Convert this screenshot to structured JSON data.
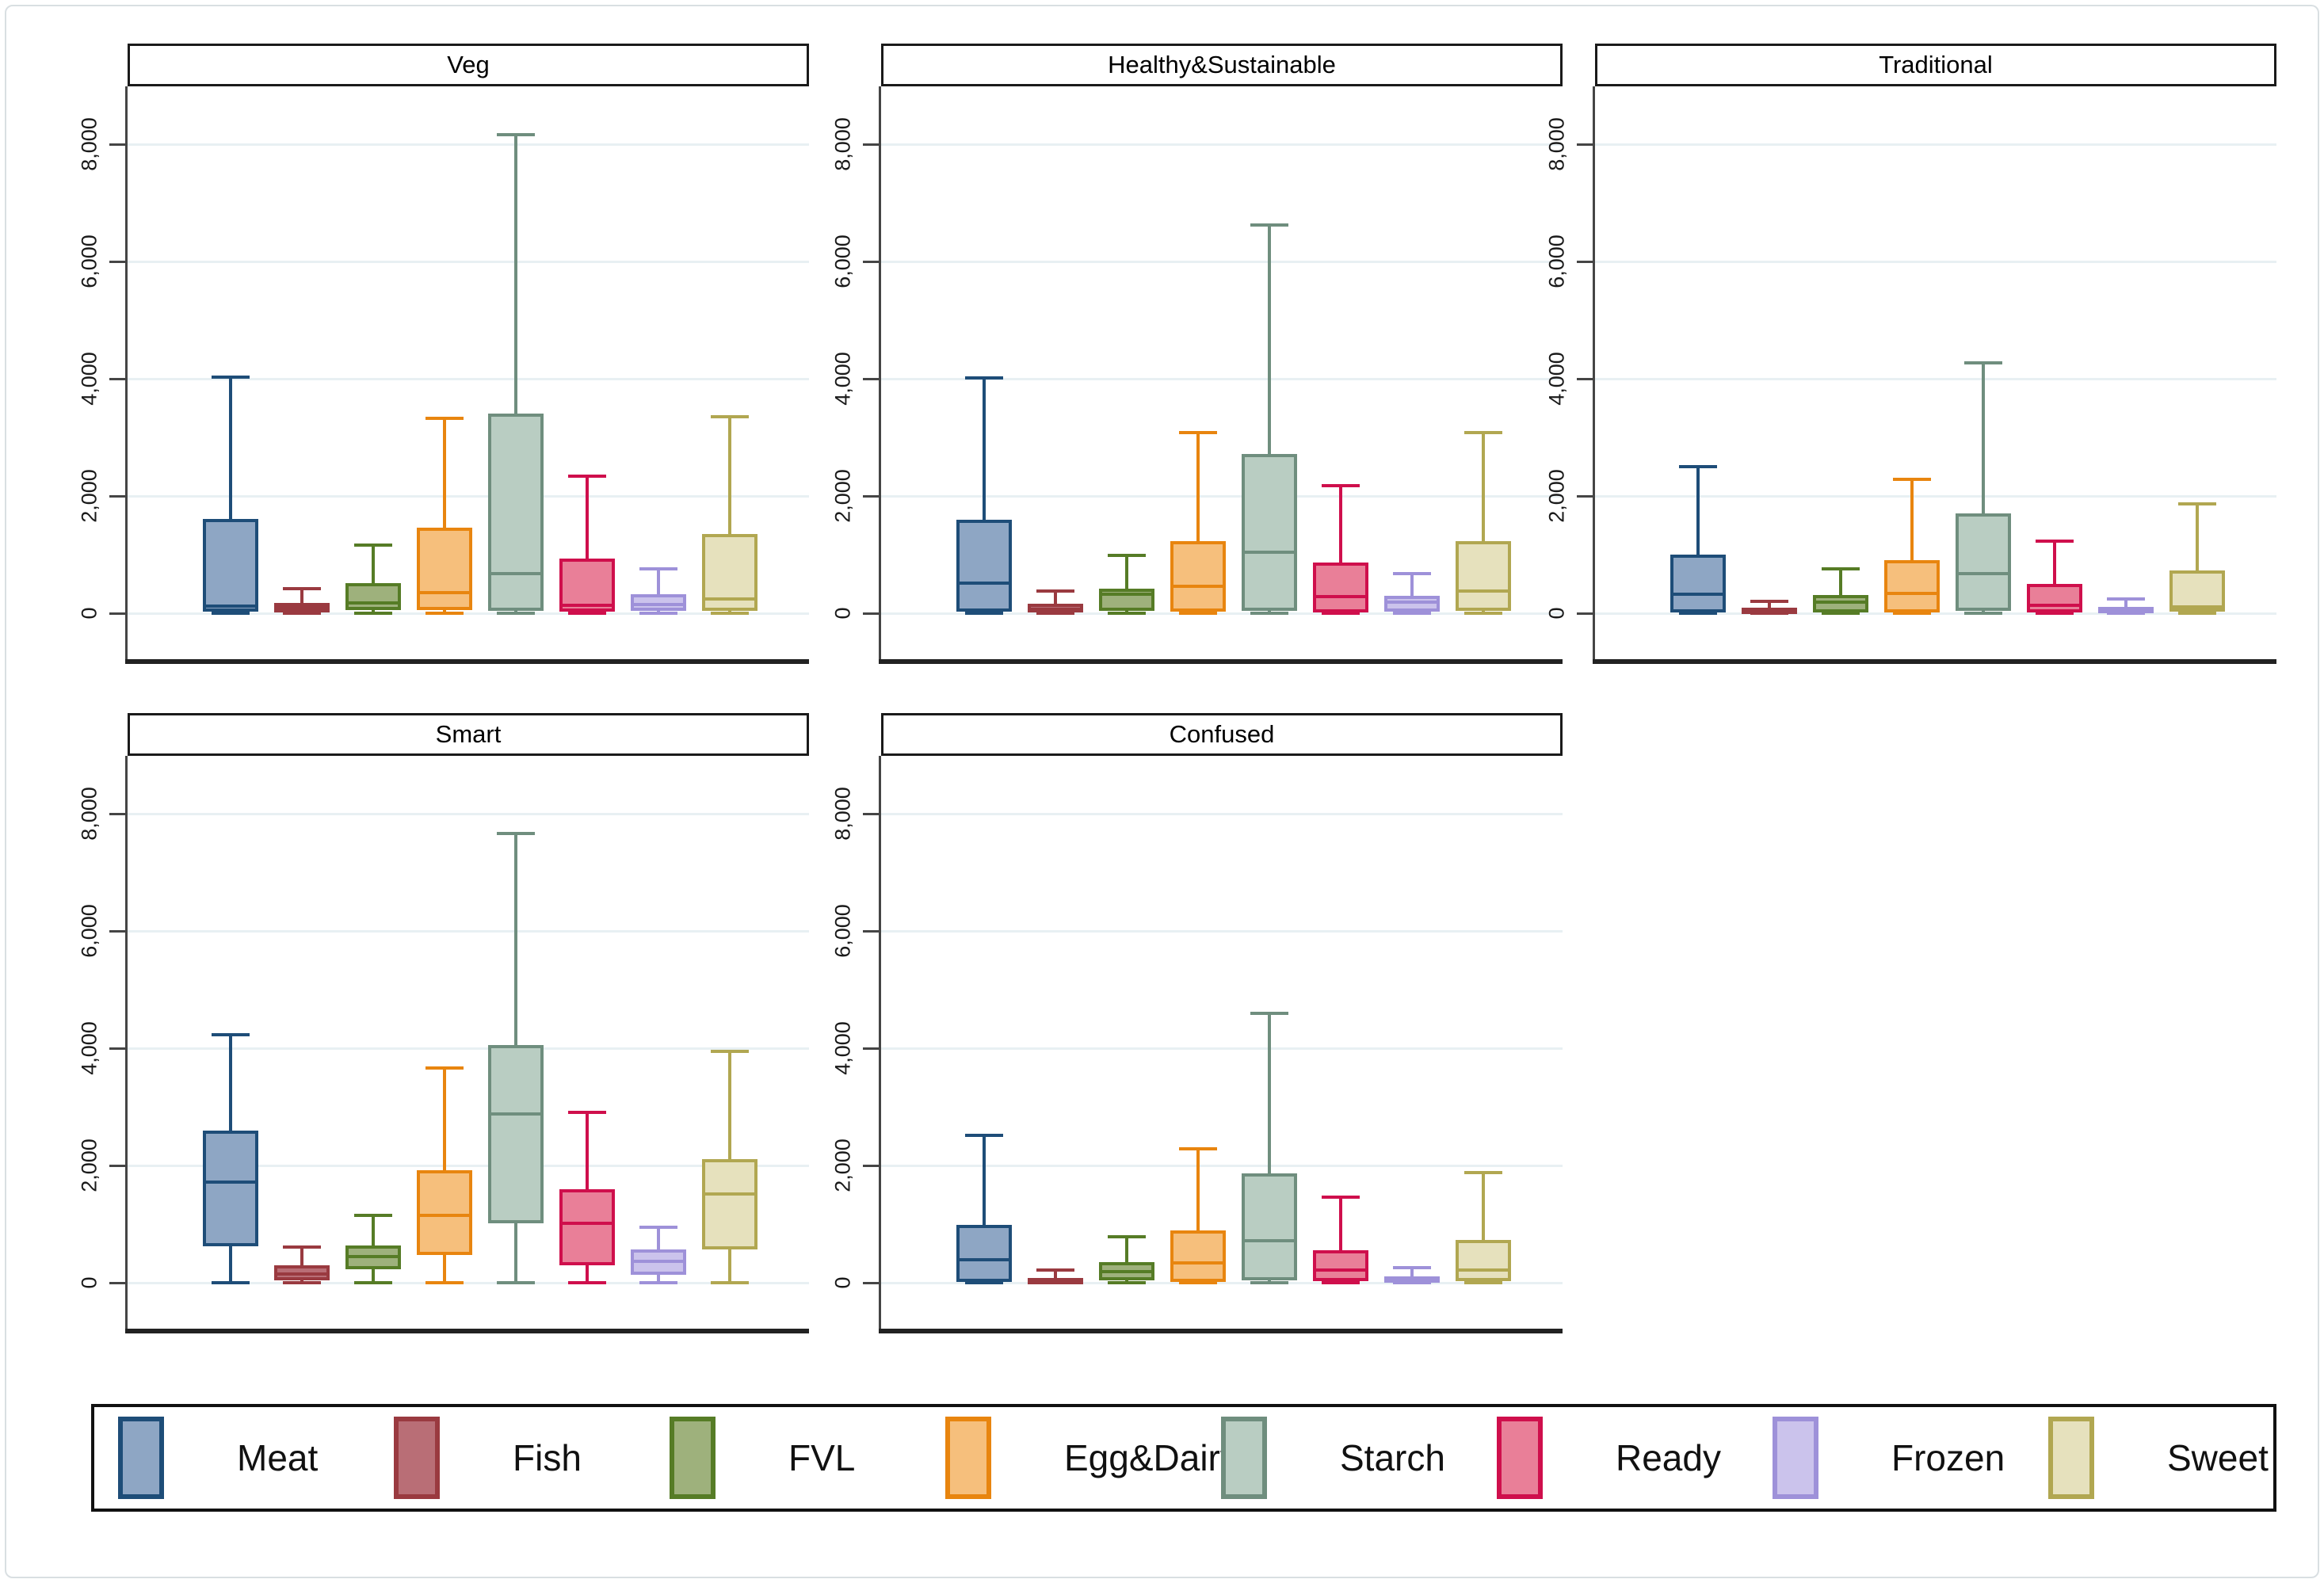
{
  "chart_data": {
    "type": "boxplot",
    "title": "",
    "ylabel": "",
    "y_ticks": [
      0,
      2000,
      4000,
      6000,
      8000
    ],
    "y_tick_labels": [
      "0",
      "2,000",
      "4,000",
      "6,000",
      "8,000"
    ],
    "ylim": [
      -800,
      8980
    ],
    "grid": "horizontal",
    "legend_position": "bottom",
    "categories": [
      "Meat",
      "Fish",
      "FVL",
      "Egg&Dairy",
      "Starch",
      "Ready",
      "Frozen",
      "Sweet"
    ],
    "palette": {
      "Meat": {
        "fill": "#8ea6c4",
        "border": "#1e4d78"
      },
      "Fish": {
        "fill": "#b96e76",
        "border": "#9a3a40"
      },
      "FVL": {
        "fill": "#9eb17c",
        "border": "#567c26"
      },
      "Egg&Dairy": {
        "fill": "#f6bf7c",
        "border": "#e8850f"
      },
      "Starch": {
        "fill": "#b9cdc2",
        "border": "#6f8e7e"
      },
      "Ready": {
        "fill": "#e97f98",
        "border": "#cf0f4c"
      },
      "Frozen": {
        "fill": "#cbc3ec",
        "border": "#9e91d9"
      },
      "Sweet": {
        "fill": "#e6e1bd",
        "border": "#b1a751"
      }
    },
    "box_value_order": [
      "whisker_low",
      "q1",
      "median",
      "q3",
      "whisker_high"
    ],
    "panels": [
      {
        "title": "Veg",
        "boxes": {
          "Meat": [
            0,
            30,
            120,
            1610,
            4030
          ],
          "Fish": [
            0,
            20,
            90,
            180,
            420
          ],
          "FVL": [
            0,
            60,
            170,
            510,
            1160
          ],
          "Egg&Dairy": [
            0,
            60,
            350,
            1460,
            3330
          ],
          "Starch": [
            0,
            40,
            680,
            3400,
            8160
          ],
          "Ready": [
            0,
            30,
            130,
            930,
            2340
          ],
          "Frozen": [
            0,
            40,
            150,
            330,
            760
          ],
          "Sweet": [
            0,
            40,
            250,
            1350,
            3350
          ]
        }
      },
      {
        "title": "Healthy&Sustainable",
        "boxes": {
          "Meat": [
            0,
            30,
            520,
            1600,
            4010
          ],
          "Fish": [
            0,
            20,
            70,
            160,
            380
          ],
          "FVL": [
            0,
            40,
            330,
            420,
            990
          ],
          "Egg&Dairy": [
            0,
            30,
            460,
            1230,
            3080
          ],
          "Starch": [
            0,
            40,
            1040,
            2720,
            6620
          ],
          "Ready": [
            0,
            20,
            290,
            860,
            2180
          ],
          "Frozen": [
            0,
            30,
            190,
            300,
            670
          ],
          "Sweet": [
            0,
            40,
            380,
            1230,
            3080
          ]
        }
      },
      {
        "title": "Traditional",
        "boxes": {
          "Meat": [
            0,
            20,
            320,
            1000,
            2500
          ],
          "Fish": [
            0,
            5,
            35,
            90,
            200
          ],
          "FVL": [
            0,
            20,
            185,
            310,
            760
          ],
          "Egg&Dairy": [
            0,
            10,
            340,
            905,
            2280
          ],
          "Starch": [
            0,
            40,
            680,
            1700,
            4270
          ],
          "Ready": [
            0,
            15,
            140,
            500,
            1230
          ],
          "Frozen": [
            0,
            5,
            50,
            105,
            240
          ],
          "Sweet": [
            0,
            30,
            110,
            730,
            1860
          ]
        }
      },
      {
        "title": "Smart",
        "boxes": {
          "Meat": [
            0,
            620,
            1720,
            2600,
            4230
          ],
          "Fish": [
            0,
            35,
            150,
            300,
            610
          ],
          "FVL": [
            0,
            230,
            440,
            640,
            1150
          ],
          "Egg&Dairy": [
            0,
            470,
            1150,
            1920,
            3660
          ],
          "Starch": [
            0,
            1020,
            2880,
            4050,
            7660
          ],
          "Ready": [
            0,
            300,
            1020,
            1590,
            2910
          ],
          "Frozen": [
            0,
            140,
            370,
            570,
            950
          ],
          "Sweet": [
            0,
            570,
            1510,
            2110,
            3950
          ]
        }
      },
      {
        "title": "Confused",
        "boxes": {
          "Meat": [
            0,
            20,
            390,
            990,
            2510
          ],
          "Fish": [
            0,
            5,
            35,
            80,
            210
          ],
          "FVL": [
            0,
            45,
            190,
            350,
            790
          ],
          "Egg&Dairy": [
            0,
            15,
            340,
            890,
            2280
          ],
          "Starch": [
            0,
            45,
            710,
            1860,
            4590
          ],
          "Ready": [
            0,
            25,
            210,
            560,
            1460
          ],
          "Frozen": [
            0,
            5,
            60,
            110,
            260
          ],
          "Sweet": [
            0,
            25,
            210,
            730,
            1880
          ]
        }
      }
    ],
    "legend": [
      "Meat",
      "Fish",
      "FVL",
      "Egg&Dairy",
      "Starch",
      "Ready",
      "Frozen",
      "Sweet"
    ]
  }
}
